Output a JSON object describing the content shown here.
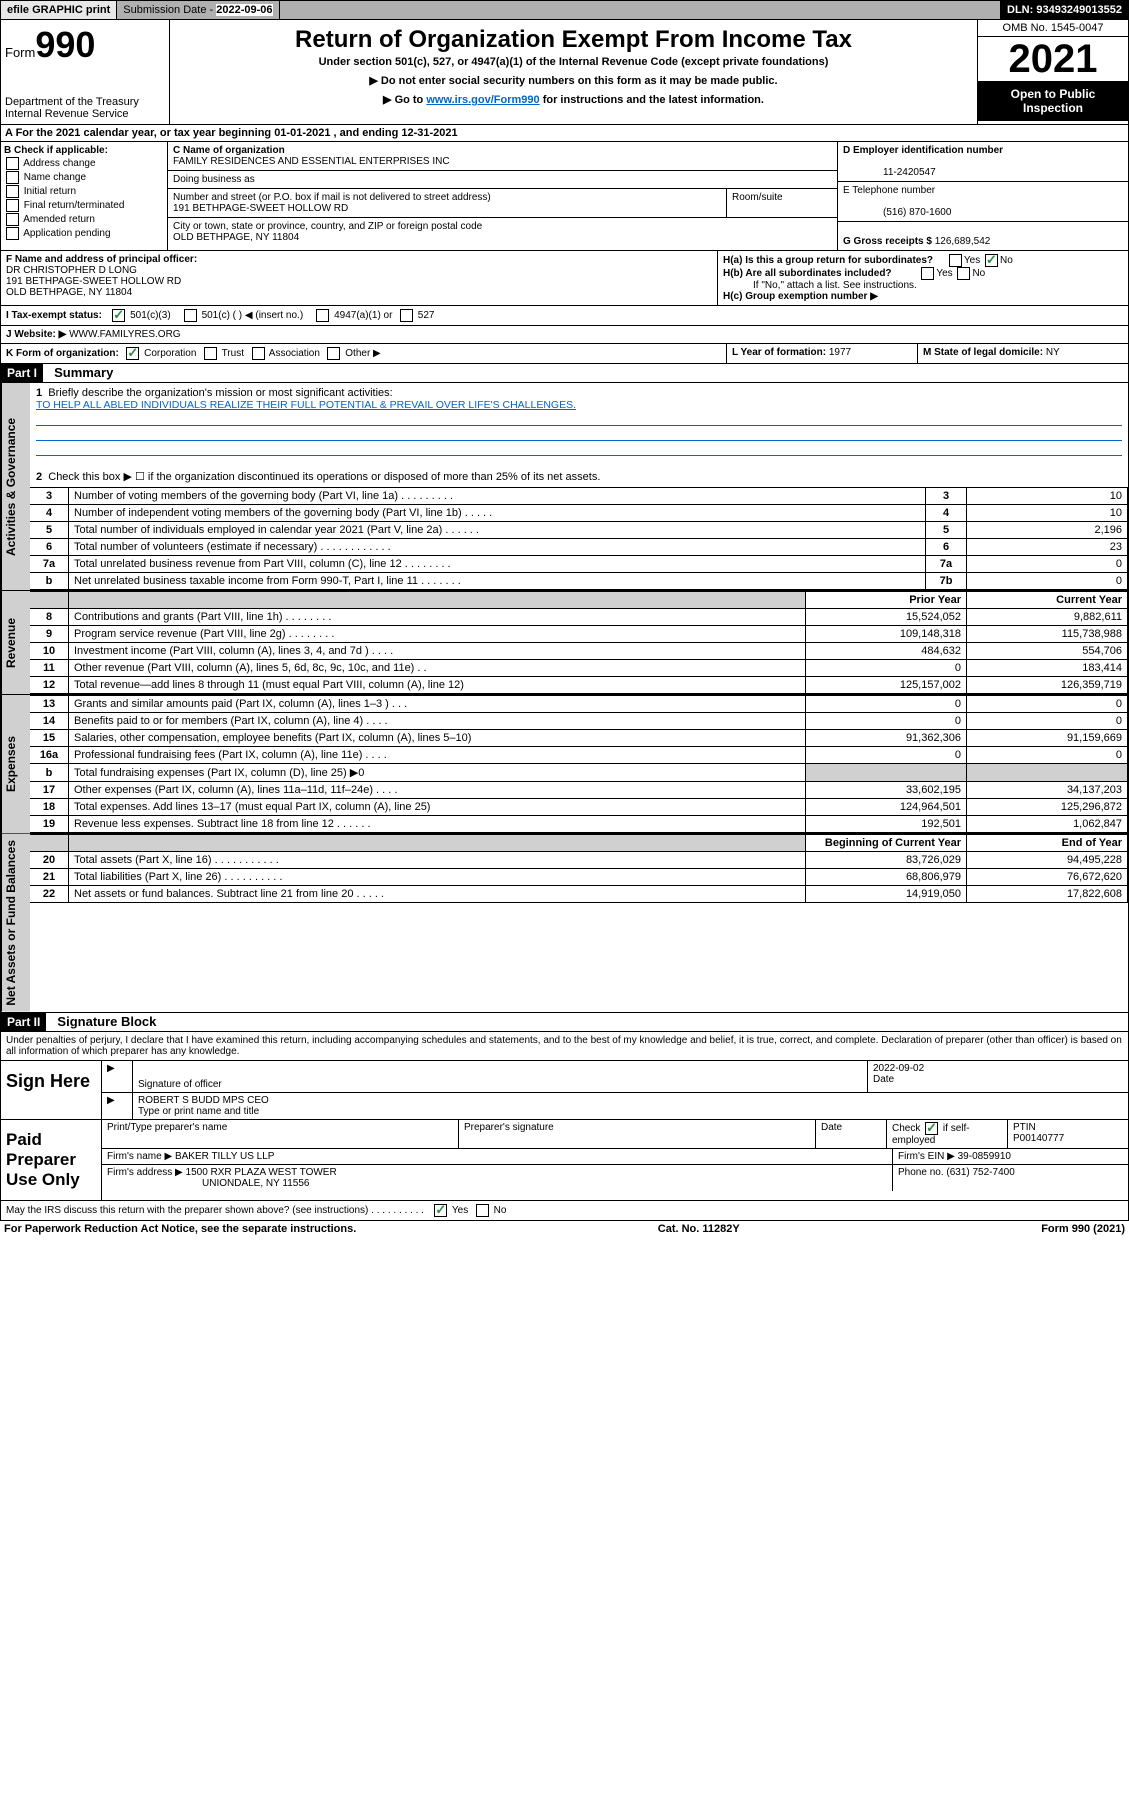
{
  "topbar": {
    "efile": "efile GRAPHIC print",
    "subdate_label": "Submission Date - ",
    "subdate": "2022-09-06",
    "dln_label": "DLN: ",
    "dln": "93493249013552"
  },
  "header": {
    "form_prefix": "Form",
    "form_number": "990",
    "dept": "Department of the Treasury\nInternal Revenue Service",
    "title": "Return of Organization Exempt From Income Tax",
    "sub1": "Under section 501(c), 527, or 4947(a)(1) of the Internal Revenue Code (except private foundations)",
    "sub2": "▶ Do not enter social security numbers on this form as it may be made public.",
    "sub3_pre": "▶ Go to ",
    "sub3_link": "www.irs.gov/Form990",
    "sub3_post": " for instructions and the latest information.",
    "omb": "OMB No. 1545-0047",
    "year": "2021",
    "inspect": "Open to Public Inspection"
  },
  "row_a": "A For the 2021 calendar year, or tax year beginning 01-01-2021    , and ending 12-31-2021",
  "col_b": {
    "label": "B Check if applicable:",
    "opts": [
      "Address change",
      "Name change",
      "Initial return",
      "Final return/terminated",
      "Amended return",
      "Application pending"
    ]
  },
  "col_c": {
    "name_label": "C Name of organization",
    "name": "FAMILY RESIDENCES AND ESSENTIAL ENTERPRISES INC",
    "dba_label": "Doing business as",
    "addr_label": "Number and street (or P.O. box if mail is not delivered to street address)",
    "room_label": "Room/suite",
    "addr": "191 BETHPAGE-SWEET HOLLOW RD",
    "city_label": "City or town, state or province, country, and ZIP or foreign postal code",
    "city": "OLD BETHPAGE, NY  11804"
  },
  "col_de": {
    "d_label": "D Employer identification number",
    "ein": "11-2420547",
    "e_label": "E Telephone number",
    "phone": "(516) 870-1600",
    "g_label": "G Gross receipts $ ",
    "gross": "126,689,542"
  },
  "row_f": {
    "label": "F  Name and address of principal officer:",
    "name": "DR CHRISTOPHER D LONG",
    "addr1": "191 BETHPAGE-SWEET HOLLOW RD",
    "addr2": "OLD BETHPAGE, NY  11804"
  },
  "row_h": {
    "ha": "H(a)  Is this a group return for subordinates?",
    "hb": "H(b)  Are all subordinates included?",
    "hb_note": "If \"No,\" attach a list. See instructions.",
    "hc": "H(c)  Group exemption number ▶",
    "yes": "Yes",
    "no": "No"
  },
  "row_i": {
    "label": "I     Tax-exempt status:",
    "o1": "501(c)(3)",
    "o2": "501(c) (  ) ◀ (insert no.)",
    "o3": "4947(a)(1) or",
    "o4": "527"
  },
  "row_j": {
    "label": "J    Website: ▶ ",
    "site": "WWW.FAMILYRES.ORG"
  },
  "row_k": {
    "label": "K Form of organization:",
    "o1": "Corporation",
    "o2": "Trust",
    "o3": "Association",
    "o4": "Other ▶"
  },
  "row_l": {
    "label": "L Year of formation: ",
    "val": "1977"
  },
  "row_m": {
    "label": "M State of legal domicile: ",
    "val": "NY"
  },
  "part1": {
    "num": "Part I",
    "title": "Summary",
    "q1": "Briefly describe the organization's mission or most significant activities:",
    "mission": "TO HELP ALL ABLED INDIVIDUALS REALIZE THEIR FULL POTENTIAL & PREVAIL OVER LIFE'S CHALLENGES.",
    "q2": "Check this box ▶ ☐  if the organization discontinued its operations or disposed of more than 25% of its net assets."
  },
  "gov_rows": [
    {
      "n": "3",
      "d": "Number of voting members of the governing body (Part VI, line 1a)  .    .    .    .    .    .    .    .    .",
      "b": "3",
      "v": "10"
    },
    {
      "n": "4",
      "d": "Number of independent voting members of the governing body (Part VI, line 1b)   .    .    .    .    .",
      "b": "4",
      "v": "10"
    },
    {
      "n": "5",
      "d": "Total number of individuals employed in calendar year 2021 (Part V, line 2a)    .    .    .    .    .    .",
      "b": "5",
      "v": "2,196"
    },
    {
      "n": "6",
      "d": "Total number of volunteers (estimate if necessary)   .    .    .    .    .    .    .    .    .    .    .    .",
      "b": "6",
      "v": "23"
    },
    {
      "n": "7a",
      "d": "Total unrelated business revenue from Part VIII, column (C), line 12   .    .    .    .    .    .    .    .",
      "b": "7a",
      "v": "0"
    },
    {
      "n": " b",
      "d": "Net unrelated business taxable income from Form 990-T, Part I, line 11   .    .    .    .    .    .    .",
      "b": "7b",
      "v": "0"
    }
  ],
  "col_hdrs": {
    "prior": "Prior Year",
    "current": "Current Year"
  },
  "revenue": [
    {
      "n": "8",
      "d": "Contributions and grants (Part VIII, line 1h)   .    .    .    .    .    .    .    .",
      "p": "15,524,052",
      "c": "9,882,611"
    },
    {
      "n": "9",
      "d": "Program service revenue (Part VIII, line 2g)   .    .    .    .    .    .    .    .",
      "p": "109,148,318",
      "c": "115,738,988"
    },
    {
      "n": "10",
      "d": "Investment income (Part VIII, column (A), lines 3, 4, and 7d )   .    .    .    .",
      "p": "484,632",
      "c": "554,706"
    },
    {
      "n": "11",
      "d": "Other revenue (Part VIII, column (A), lines 5, 6d, 8c, 9c, 10c, and 11e)   .    .",
      "p": "0",
      "c": "183,414"
    },
    {
      "n": "12",
      "d": "Total revenue—add lines 8 through 11 (must equal Part VIII, column (A), line 12)",
      "p": "125,157,002",
      "c": "126,359,719"
    }
  ],
  "expenses": [
    {
      "n": "13",
      "d": "Grants and similar amounts paid (Part IX, column (A), lines 1–3 )   .    .    .",
      "p": "0",
      "c": "0"
    },
    {
      "n": "14",
      "d": "Benefits paid to or for members (Part IX, column (A), line 4)   .    .    .    .",
      "p": "0",
      "c": "0"
    },
    {
      "n": "15",
      "d": "Salaries, other compensation, employee benefits (Part IX, column (A), lines 5–10)",
      "p": "91,362,306",
      "c": "91,159,669"
    },
    {
      "n": "16a",
      "d": "Professional fundraising fees (Part IX, column (A), line 11e)   .    .    .    .",
      "p": "0",
      "c": "0"
    },
    {
      "n": "b",
      "d": "Total fundraising expenses (Part IX, column (D), line 25) ▶0",
      "p": "",
      "c": "",
      "shade": true
    },
    {
      "n": "17",
      "d": "Other expenses (Part IX, column (A), lines 11a–11d, 11f–24e)   .    .    .    .",
      "p": "33,602,195",
      "c": "34,137,203"
    },
    {
      "n": "18",
      "d": "Total expenses. Add lines 13–17 (must equal Part IX, column (A), line 25)",
      "p": "124,964,501",
      "c": "125,296,872"
    },
    {
      "n": "19",
      "d": "Revenue less expenses. Subtract line 18 from line 12   .    .    .    .    .    .",
      "p": "192,501",
      "c": "1,062,847"
    }
  ],
  "net_hdrs": {
    "begin": "Beginning of Current Year",
    "end": "End of Year"
  },
  "netassets": [
    {
      "n": "20",
      "d": "Total assets (Part X, line 16)   .    .    .    .    .    .    .    .    .    .    .",
      "p": "83,726,029",
      "c": "94,495,228"
    },
    {
      "n": "21",
      "d": "Total liabilities (Part X, line 26)   .    .    .    .    .    .    .    .    .    .",
      "p": "68,806,979",
      "c": "76,672,620"
    },
    {
      "n": "22",
      "d": "Net assets or fund balances. Subtract line 21 from line 20   .    .    .    .    .",
      "p": "14,919,050",
      "c": "17,822,608"
    }
  ],
  "part2": {
    "num": "Part II",
    "title": "Signature Block",
    "decl": "Under penalties of perjury, I declare that I have examined this return, including accompanying schedules and statements, and to the best of my knowledge and belief, it is true, correct, and complete. Declaration of preparer (other than officer) is based on all information of which preparer has any knowledge."
  },
  "sign": {
    "label": "Sign Here",
    "sig_officer": "Signature of officer",
    "date_label": "Date",
    "date": "2022-09-02",
    "name": "ROBERT S BUDD MPS CEO",
    "name_label": "Type or print name and title"
  },
  "preparer": {
    "label": "Paid Preparer Use Only",
    "col1": "Print/Type preparer's name",
    "col2": "Preparer's signature",
    "col3": "Date",
    "col4_pre": "Check",
    "col4_post": "if self-employed",
    "ptin_label": "PTIN",
    "ptin": "P00140777",
    "firm_label": "Firm's name    ▶ ",
    "firm": "BAKER TILLY US LLP",
    "ein_label": "Firm's EIN ▶ ",
    "ein": "39-0859910",
    "addr_label": "Firm's address ▶ ",
    "addr1": "1500 RXR PLAZA WEST TOWER",
    "addr2": "UNIONDALE, NY  11556",
    "phone_label": "Phone no. ",
    "phone": "(631) 752-7400"
  },
  "may_discuss": "May the IRS discuss this return with the preparer shown above? (see instructions)   .    .    .    .    .    .    .    .    .    .",
  "footer": {
    "left": "For Paperwork Reduction Act Notice, see the separate instructions.",
    "mid": "Cat. No. 11282Y",
    "right": "Form 990 (2021)"
  },
  "vtabs": {
    "gov": "Activities & Governance",
    "rev": "Revenue",
    "exp": "Expenses",
    "net": "Net Assets or Fund Balances"
  }
}
